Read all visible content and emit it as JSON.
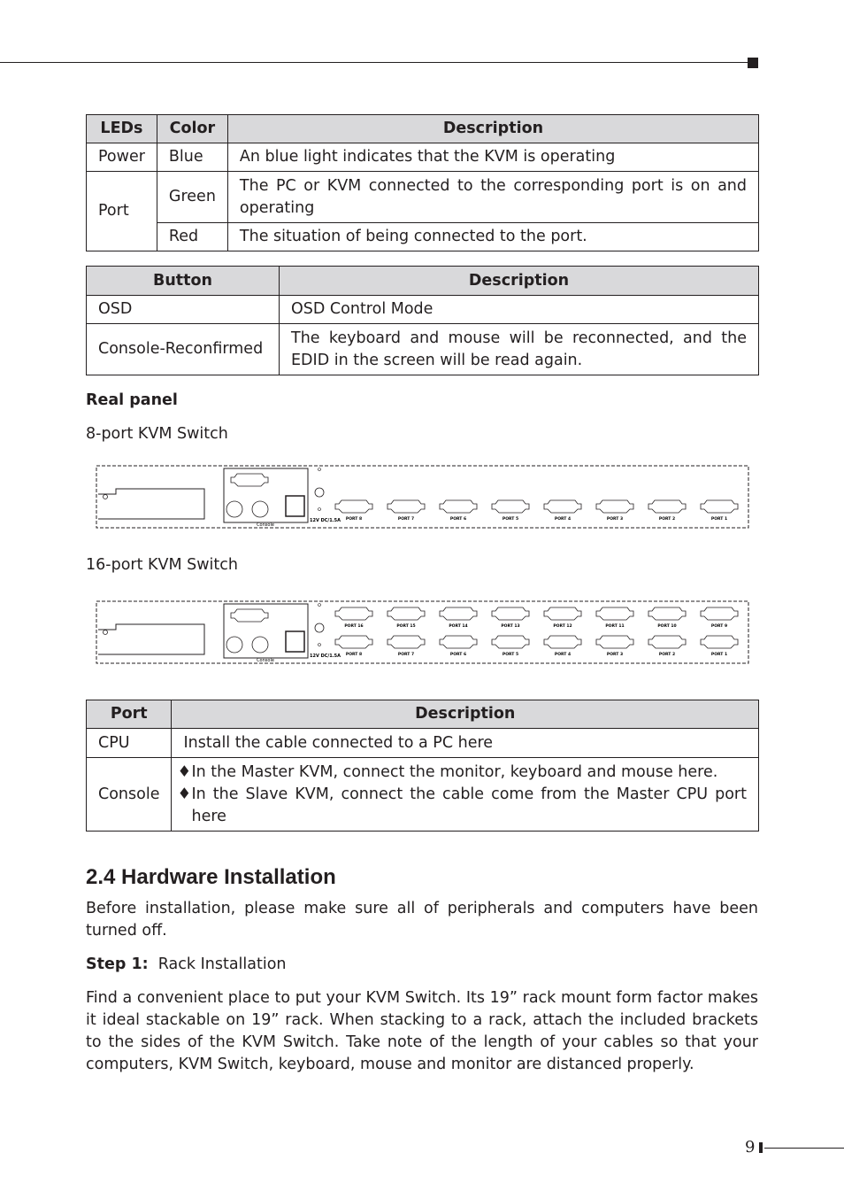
{
  "leds_table": {
    "headers": [
      "LEDs",
      "Color",
      "Description"
    ],
    "rows": [
      {
        "led": "Power",
        "color": "Blue",
        "desc": "An blue light indicates that the KVM is operating"
      },
      {
        "led": "Port",
        "color": "Green",
        "desc": "The PC or KVM connected to the corresponding port is on and operating"
      },
      {
        "color": "Red",
        "desc": "The situation of being connected to the port."
      }
    ]
  },
  "button_table": {
    "headers": [
      "Button",
      "Description"
    ],
    "rows": [
      {
        "button": "OSD",
        "desc": "OSD Control Mode"
      },
      {
        "button": "Console-Reconfirmed",
        "desc": "The keyboard and mouse will be reconnected, and the EDID in the screen will be read again."
      }
    ]
  },
  "real_panel": {
    "heading": "Real panel",
    "caption_8": "8-port KVM Switch",
    "caption_16": "16-port KVM Switch",
    "console_label": "Console",
    "power_label": "12V DC/1.5A",
    "ports_8": [
      "PORT 8",
      "PORT 7",
      "PORT 6",
      "PORT 5",
      "PORT 4",
      "PORT 3",
      "PORT 2",
      "PORT 1"
    ],
    "ports_16_top": [
      "PORT 16",
      "PORT 15",
      "PORT 14",
      "PORT 13",
      "PORT 12",
      "PORT 11",
      "PORT 10",
      "PORT 9"
    ]
  },
  "port_table": {
    "headers": [
      "Port",
      "Description"
    ],
    "rows": [
      {
        "port": "CPU",
        "desc": "Install the cable connected to a PC here"
      },
      {
        "port": "Console",
        "bullets": [
          "In the Master KVM, connect the monitor, keyboard and mouse here.",
          "In the Slave KVM, connect the cable come from the Master CPU port here"
        ]
      }
    ],
    "bullet_glyph": "♦"
  },
  "section": {
    "title": "2.4 Hardware Installation",
    "intro": "Before installation, please make sure all of peripherals and computers have been turned off.",
    "step_label": "Step 1:",
    "step_title": "Rack Installation",
    "step_body": "Find a convenient place to put your KVM Switch. Its 19” rack mount form factor makes it ideal stackable on 19” rack.  When stacking to a rack, attach the included brackets to the sides of the KVM Switch. Take note of the length of your cables so that your computers, KVM Switch, keyboard, mouse and monitor are distanced properly."
  },
  "page_number": "9"
}
